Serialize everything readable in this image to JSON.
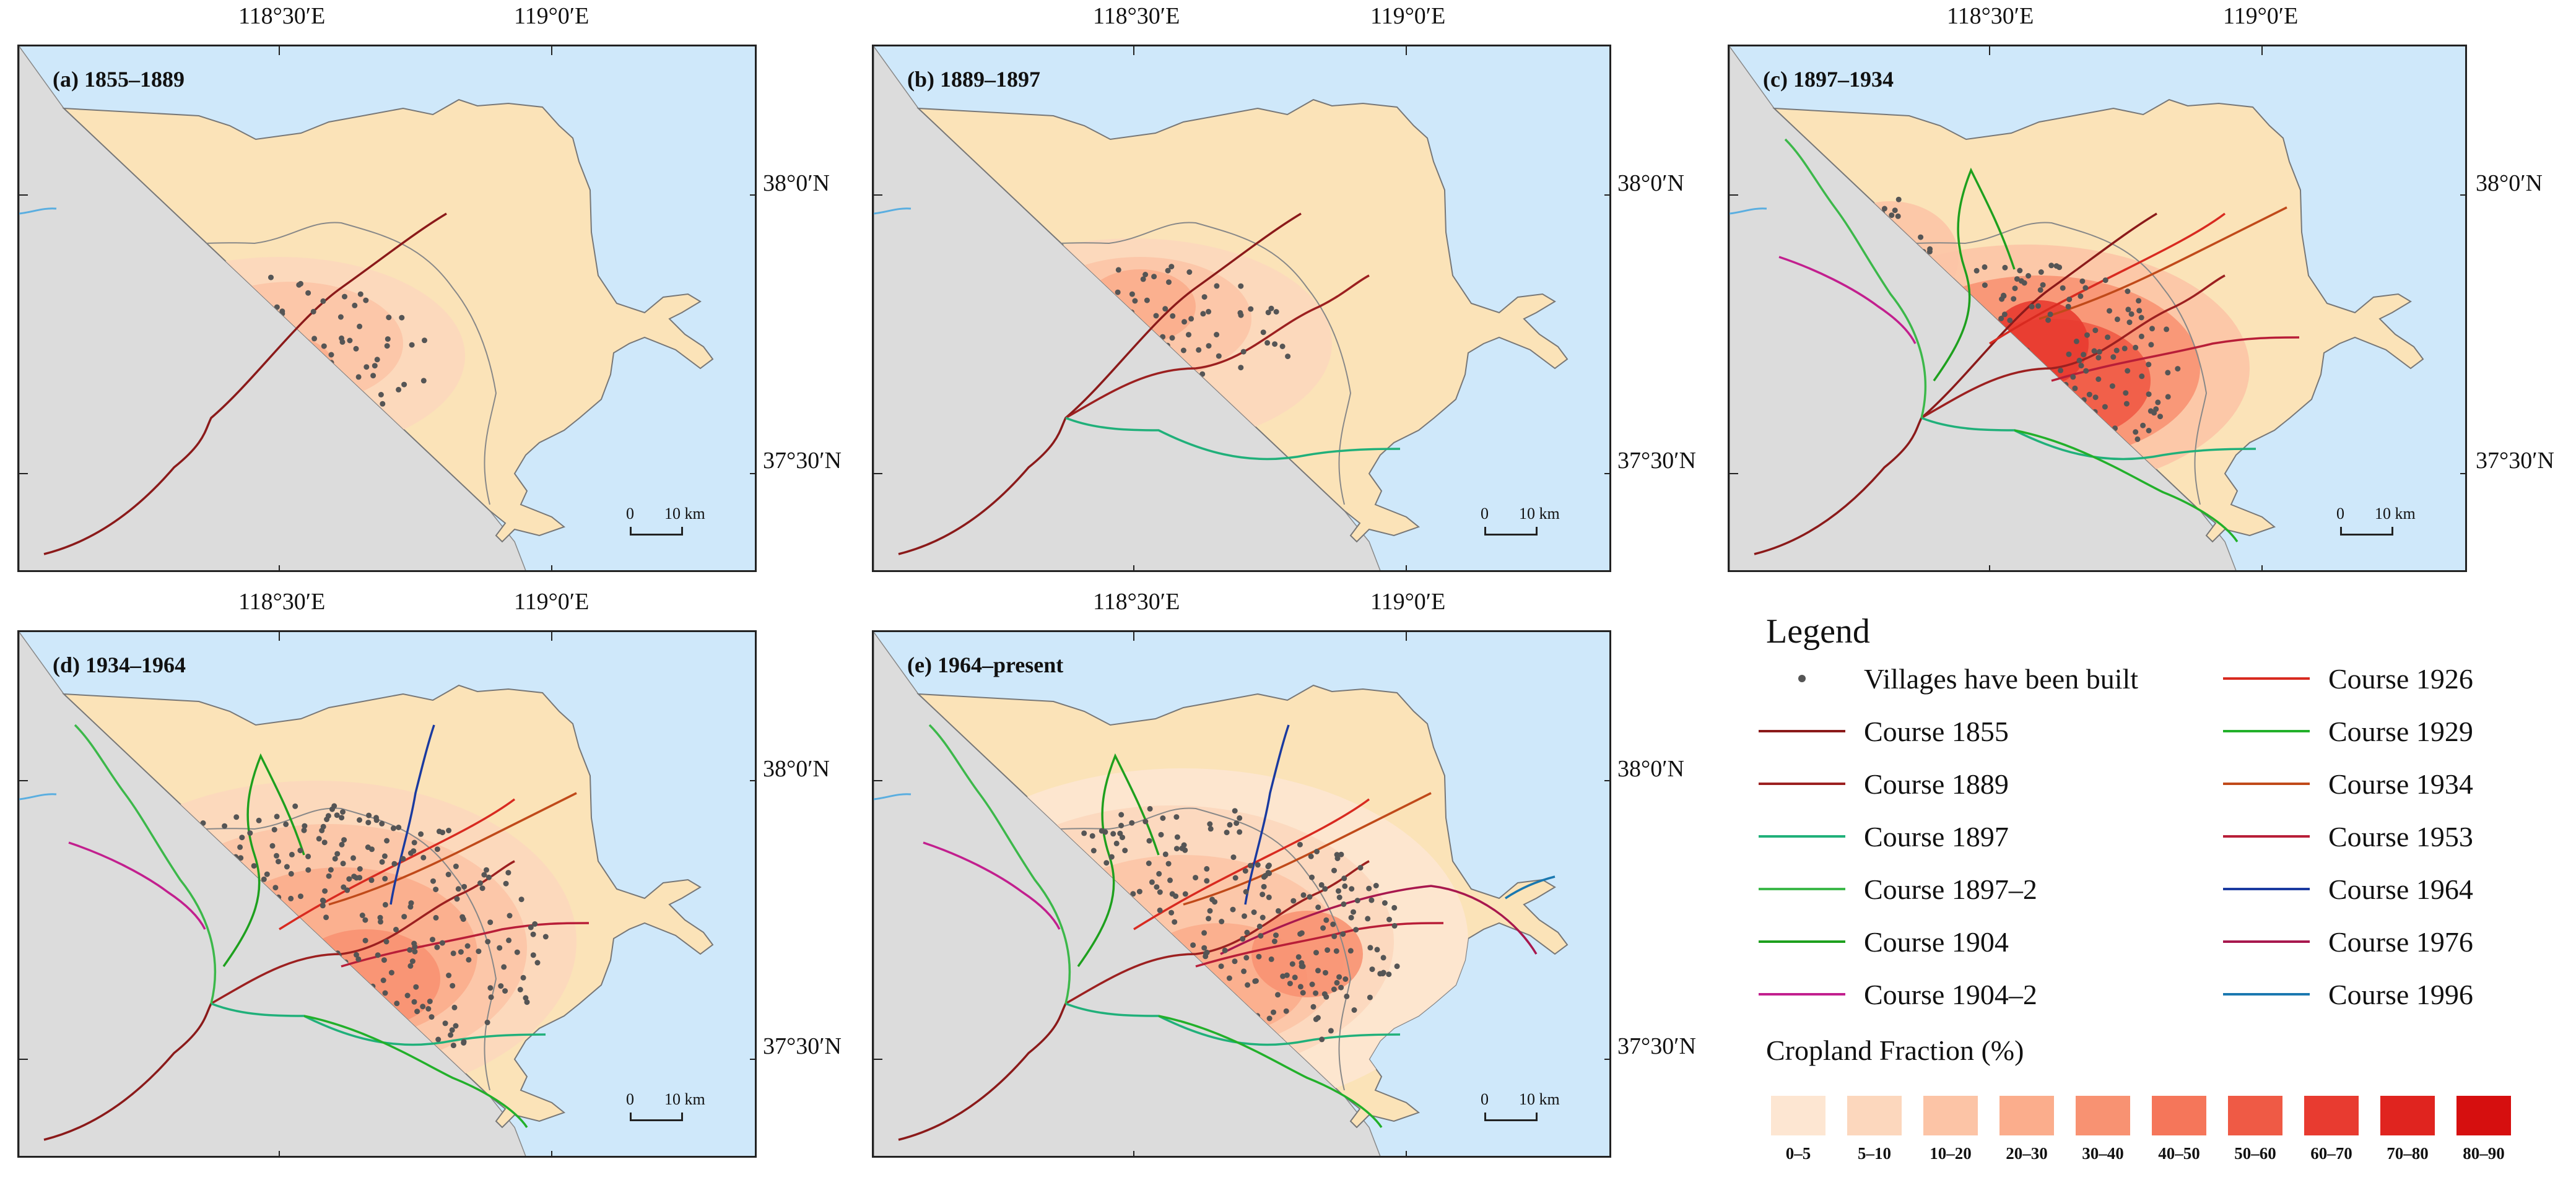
{
  "panels": [
    {
      "id": "a",
      "title": "(a) 1855–1889"
    },
    {
      "id": "b",
      "title": "(b) 1889–1897"
    },
    {
      "id": "c",
      "title": "(c) 1897–1934"
    },
    {
      "id": "d",
      "title": "(d) 1934–1964"
    },
    {
      "id": "e",
      "title": "(e) 1964–present"
    }
  ],
  "coordinates": {
    "lon1": "118°30′E",
    "lon2": "119°0′E",
    "lat1": "38°0′N",
    "lat2": "37°30′N"
  },
  "scalebar": {
    "zero": "0",
    "label": "10 km"
  },
  "legend": {
    "title": "Legend",
    "villages_label": "Villages have been built",
    "courses": [
      {
        "label": "Course 1855",
        "color": "#8b1a1a"
      },
      {
        "label": "Course 1889",
        "color": "#9c2020"
      },
      {
        "label": "Course 1897",
        "color": "#20b07a"
      },
      {
        "label": "Course 1897–2",
        "color": "#3cb84a"
      },
      {
        "label": "Course 1904",
        "color": "#1ea01e"
      },
      {
        "label": "Course 1904–2",
        "color": "#c21f8e"
      },
      {
        "label": "Course 1926",
        "color": "#d82a20"
      },
      {
        "label": "Course 1929",
        "color": "#22b02a"
      },
      {
        "label": "Course 1934",
        "color": "#c04a1a"
      },
      {
        "label": "Course 1953",
        "color": "#b81e38"
      },
      {
        "label": "Course 1964",
        "color": "#1a3aa0"
      },
      {
        "label": "Course 1976",
        "color": "#a8184e"
      },
      {
        "label": "Course 1996",
        "color": "#1a78b0"
      }
    ],
    "cropland_title": "Cropland Fraction (%)",
    "cropland_classes": [
      {
        "label": "0–5",
        "color": "#fde6d2"
      },
      {
        "label": "5–10",
        "color": "#fcd7bd"
      },
      {
        "label": "10–20",
        "color": "#fcc4a6"
      },
      {
        "label": "20–30",
        "color": "#fbad8c"
      },
      {
        "label": "30–40",
        "color": "#f89272"
      },
      {
        "label": "40–50",
        "color": "#f5765a"
      },
      {
        "label": "50–60",
        "color": "#ef5a45"
      },
      {
        "label": "60–70",
        "color": "#e83b30"
      },
      {
        "label": "70–80",
        "color": "#e0241f"
      },
      {
        "label": "80–90",
        "color": "#d60f0f"
      }
    ]
  }
}
